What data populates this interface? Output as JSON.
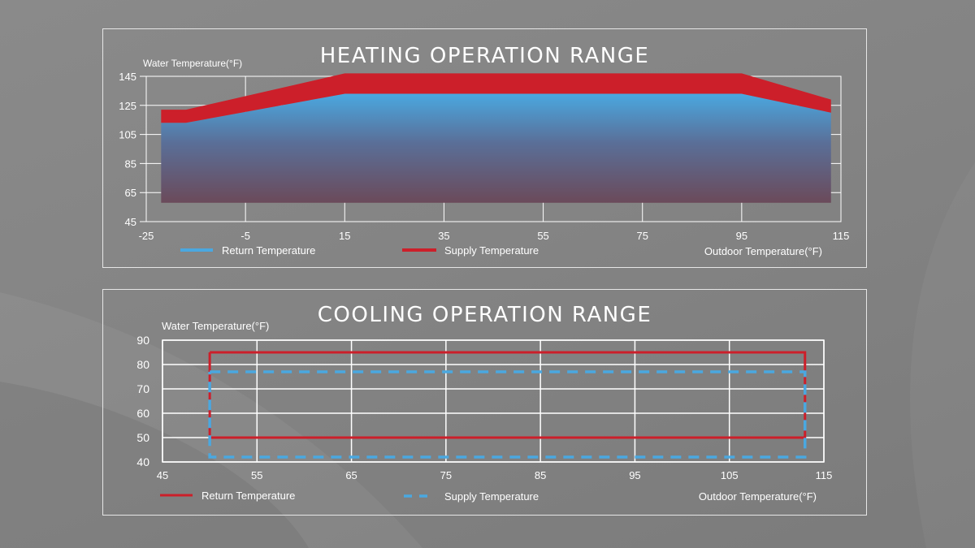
{
  "colors": {
    "supply_red": "#cc1f2a",
    "return_blue": "#4aa8e0",
    "grid": "#ffffff",
    "text": "#ffffff"
  },
  "chart_data": [
    {
      "type": "area",
      "title": "HEATING OPERATION RANGE",
      "ylabel": "Water Temperature(°F)",
      "xlabel": "Outdoor Temperature(°F)",
      "xlim": [
        -25,
        115
      ],
      "ylim": [
        45,
        145
      ],
      "x_ticks": [
        -25,
        -5,
        15,
        35,
        55,
        75,
        95,
        115
      ],
      "y_ticks": [
        45,
        65,
        85,
        105,
        125,
        145
      ],
      "grid": true,
      "legend": "bottom",
      "series": [
        {
          "name": "Return Temperature",
          "color": "#4aa8e0",
          "x": [
            -22,
            -17,
            15,
            95,
            113
          ],
          "y": [
            113,
            113,
            133,
            133,
            120
          ]
        },
        {
          "name": "Supply Temperature",
          "color": "#cc1f2a",
          "x": [
            -22,
            -17,
            15,
            95,
            113
          ],
          "y": [
            122,
            122,
            147,
            147,
            129
          ]
        }
      ],
      "area_bottom": 58
    },
    {
      "type": "line",
      "title": "COOLING OPERATION RANGE",
      "ylabel": "Water Temperature(°F)",
      "xlabel": "Outdoor Temperature(°F)",
      "xlim": [
        45,
        115
      ],
      "ylim": [
        40,
        90
      ],
      "x_ticks": [
        45,
        55,
        65,
        75,
        85,
        95,
        105,
        115
      ],
      "y_ticks": [
        40,
        50,
        60,
        70,
        80,
        90
      ],
      "grid": true,
      "legend": "bottom",
      "series": [
        {
          "name": "Return Temperature",
          "color": "#cc1f2a",
          "style": "solid",
          "x": [
            50,
            113,
            113,
            50,
            50
          ],
          "y": [
            85,
            85,
            50,
            50,
            85
          ]
        },
        {
          "name": "Supply Temperature",
          "color": "#4aa8e0",
          "style": "dashed",
          "x": [
            50,
            113,
            113,
            50,
            50
          ],
          "y": [
            77,
            77,
            42,
            42,
            77
          ]
        }
      ]
    }
  ]
}
